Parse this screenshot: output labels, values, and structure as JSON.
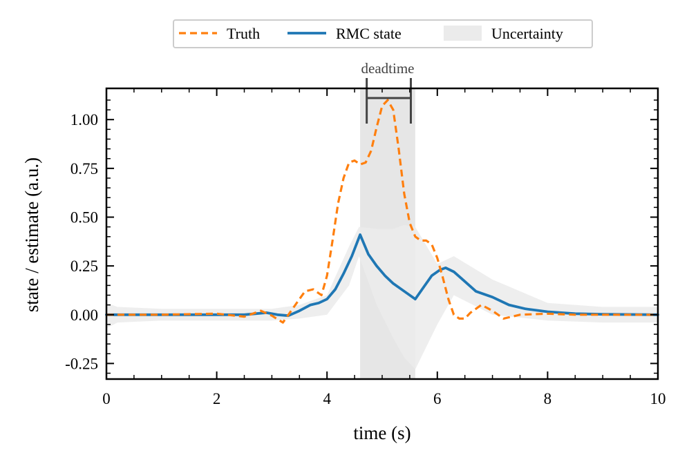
{
  "chart_data": {
    "type": "line",
    "xlabel": "time (s)",
    "ylabel": "state / estimate (a.u.)",
    "xlim": [
      0,
      10
    ],
    "ylim": [
      -0.33,
      1.16
    ],
    "xticks": [
      0,
      2,
      4,
      6,
      8,
      10
    ],
    "xtick_labels": [
      "0",
      "2",
      "4",
      "6",
      "8",
      "10"
    ],
    "yticks": [
      -0.25,
      0.0,
      0.25,
      0.5,
      0.75,
      1.0
    ],
    "ytick_labels": [
      "-0.25",
      "0.00",
      "0.25",
      "0.50",
      "0.75",
      "1.00"
    ],
    "grid": false,
    "legend_position": "top-center-outside",
    "colors": {
      "truth": "#ff7f0e",
      "rmc": "#1f77b4",
      "uncertainty": "#ebebeb",
      "deadtime_band": "#e6e6e6",
      "annotation": "#444444"
    },
    "legend": [
      "Truth",
      "RMC state",
      "Uncertainty"
    ],
    "series": [
      {
        "name": "Truth",
        "style": "dashed",
        "x": [
          0,
          1.0,
          2.0,
          2.5,
          2.8,
          3.0,
          3.2,
          3.4,
          3.6,
          3.75,
          3.9,
          4.0,
          4.1,
          4.2,
          4.3,
          4.4,
          4.5,
          4.6,
          4.7,
          4.8,
          4.9,
          5.0,
          5.1,
          5.2,
          5.3,
          5.4,
          5.5,
          5.6,
          5.7,
          5.8,
          5.9,
          6.0,
          6.1,
          6.2,
          6.3,
          6.4,
          6.5,
          6.6,
          6.8,
          7.0,
          7.2,
          7.5,
          8.0,
          8.5,
          9.0,
          10.0
        ],
        "values": [
          0.0,
          0.0,
          0.005,
          -0.01,
          0.02,
          -0.005,
          -0.04,
          0.04,
          0.12,
          0.13,
          0.1,
          0.2,
          0.38,
          0.57,
          0.7,
          0.78,
          0.79,
          0.77,
          0.78,
          0.84,
          0.96,
          1.07,
          1.1,
          1.05,
          0.85,
          0.62,
          0.47,
          0.4,
          0.38,
          0.38,
          0.36,
          0.29,
          0.19,
          0.08,
          0.0,
          -0.02,
          -0.02,
          0.01,
          0.05,
          0.02,
          -0.02,
          0.0,
          0.005,
          0.0,
          0.0,
          0.0
        ]
      },
      {
        "name": "RMC state",
        "style": "solid",
        "x": [
          0,
          1.0,
          2.0,
          2.5,
          2.9,
          3.1,
          3.3,
          3.5,
          3.7,
          3.85,
          4.0,
          4.15,
          4.3,
          4.45,
          4.6,
          4.75,
          4.9,
          5.05,
          5.2,
          5.35,
          5.5,
          5.6,
          5.75,
          5.9,
          6.05,
          6.15,
          6.3,
          6.5,
          6.7,
          7.0,
          7.3,
          7.6,
          8.0,
          8.5,
          9.0,
          10.0
        ],
        "values": [
          0.0,
          0.0,
          0.0,
          0.0,
          0.01,
          0.0,
          -0.005,
          0.02,
          0.05,
          0.06,
          0.08,
          0.13,
          0.21,
          0.3,
          0.41,
          0.31,
          0.25,
          0.2,
          0.16,
          0.13,
          0.1,
          0.08,
          0.14,
          0.2,
          0.23,
          0.24,
          0.22,
          0.17,
          0.12,
          0.09,
          0.05,
          0.03,
          0.015,
          0.005,
          0.002,
          0.0
        ]
      },
      {
        "name": "Uncertainty",
        "style": "band",
        "x": [
          0,
          0.2,
          1.0,
          3.0,
          3.5,
          4.0,
          4.4,
          4.58,
          4.9,
          5.2,
          5.4,
          5.6,
          6.0,
          6.3,
          7.0,
          8.0,
          9.0,
          10.0
        ],
        "upper": [
          0.06,
          0.04,
          0.03,
          0.03,
          0.05,
          0.1,
          0.35,
          0.45,
          0.44,
          0.44,
          0.46,
          0.45,
          0.26,
          0.3,
          0.18,
          0.06,
          0.04,
          0.04
        ],
        "lower": [
          -0.07,
          -0.04,
          -0.03,
          -0.03,
          -0.02,
          0.0,
          0.15,
          0.3,
          0.05,
          -0.12,
          -0.22,
          -0.28,
          -0.05,
          0.1,
          0.0,
          -0.03,
          -0.04,
          -0.04
        ]
      }
    ],
    "annotations": [
      {
        "type": "span",
        "label": "deadtime",
        "x_start": 4.6,
        "x_end": 5.6,
        "bracket_start": 4.72,
        "bracket_end": 5.52
      }
    ]
  }
}
